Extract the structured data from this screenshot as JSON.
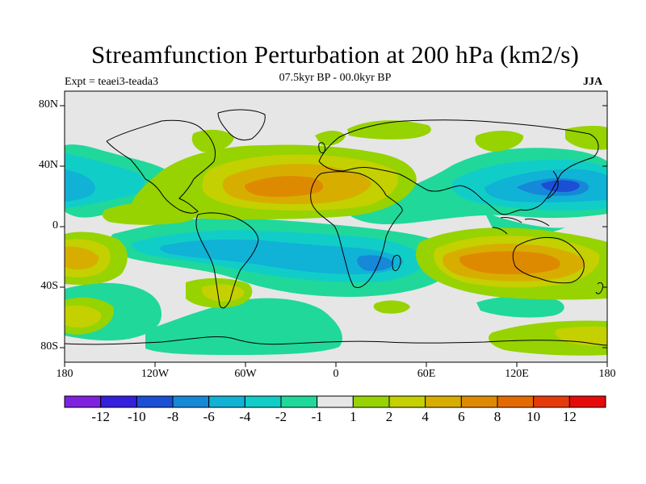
{
  "title": "Streamfunction Perturbation at 200 hPa (km2/s)",
  "experiment": "Expt = teaei3-teada3",
  "period": "07.5kyr BP - 00.0kyr BP",
  "season": "JJA",
  "lat_labels": [
    "80N",
    "40N",
    "0",
    "40S",
    "80S"
  ],
  "lon_labels": [
    "180",
    "120W",
    "60W",
    "0",
    "60E",
    "120E",
    "180"
  ],
  "colorbar": {
    "colors": [
      "#7f22e0",
      "#3520dd",
      "#1a4fd6",
      "#1688d8",
      "#10b2d6",
      "#11cdc8",
      "#20d89a",
      "#e6e6e6",
      "#96d300",
      "#c4d000",
      "#d7ae00",
      "#de8a00",
      "#e46a00",
      "#e63a0a",
      "#e60a0a"
    ],
    "labels": [
      "-12",
      "-10",
      "-8",
      "-6",
      "-4",
      "-2",
      "-1",
      "1",
      "2",
      "4",
      "6",
      "8",
      "10",
      "12"
    ]
  },
  "colors": {
    "background": "#e6e6e6",
    "neg1": "#20d89a",
    "neg2": "#11cdc8",
    "neg4": "#10b2d6",
    "neg6": "#1688d8",
    "neg8": "#1a4fd6",
    "pos1": "#96d300",
    "pos2": "#c4d000",
    "pos4": "#d7ae00",
    "pos6": "#de8a00"
  }
}
